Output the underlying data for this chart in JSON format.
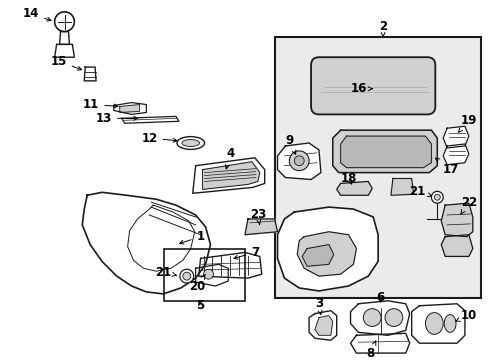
{
  "bg_color": "#ffffff",
  "fig_width": 4.89,
  "fig_height": 3.6,
  "dpi": 100,
  "label_fontsize": 8.5,
  "line_color": "#1a1a1a",
  "fill_light": "#e8e8e8",
  "fill_mid": "#d0d0d0",
  "fill_dark": "#b8b8b8"
}
